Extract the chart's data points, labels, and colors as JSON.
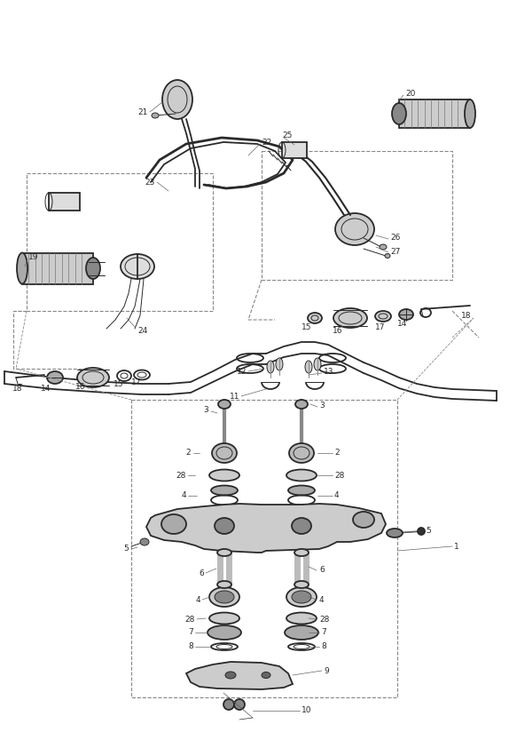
{
  "bg_color": "#ffffff",
  "line_color": "#2a2a2a",
  "dash_color": "#888888",
  "figsize": [
    5.83,
    8.24
  ],
  "dpi": 100,
  "label_fs": 6.5,
  "lw_main": 1.3,
  "lw_thin": 0.7,
  "lw_dash": 0.8
}
